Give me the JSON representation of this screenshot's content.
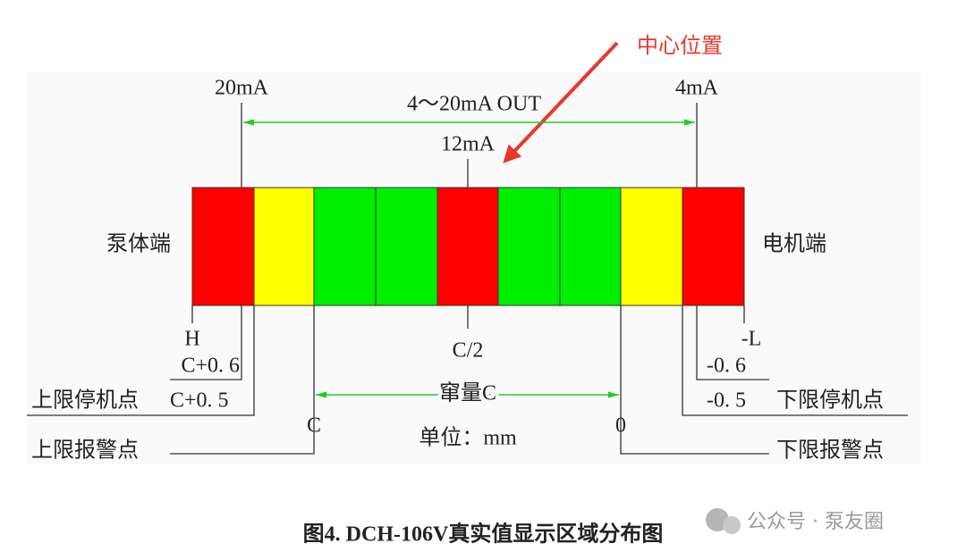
{
  "annotation": "中心位置",
  "top": {
    "left_current": "20mA",
    "range": "4～20mA OUT",
    "right_current": "4mA",
    "center_current": "12mA"
  },
  "ends": {
    "pump": "泵体端",
    "motor": "电机端"
  },
  "left_marks": {
    "h": "H",
    "c_plus_06": "C+0. 6",
    "stop_label": "上限停机点",
    "c_plus_05": "C+0. 5",
    "c": "C",
    "alarm_label": "上限报警点"
  },
  "center_marks": {
    "half": "C/2",
    "float": "窜量C",
    "unit": "单位：mm"
  },
  "right_marks": {
    "l": "-L",
    "minus_06": "-0. 6",
    "minus_05": "-0. 5",
    "stop_label": "下限停机点",
    "zero": "0",
    "alarm_label": "下限报警点"
  },
  "caption": "图4. DCH-106V真实值显示区域分布图",
  "watermark": "公众号 · 泵友圈"
}
